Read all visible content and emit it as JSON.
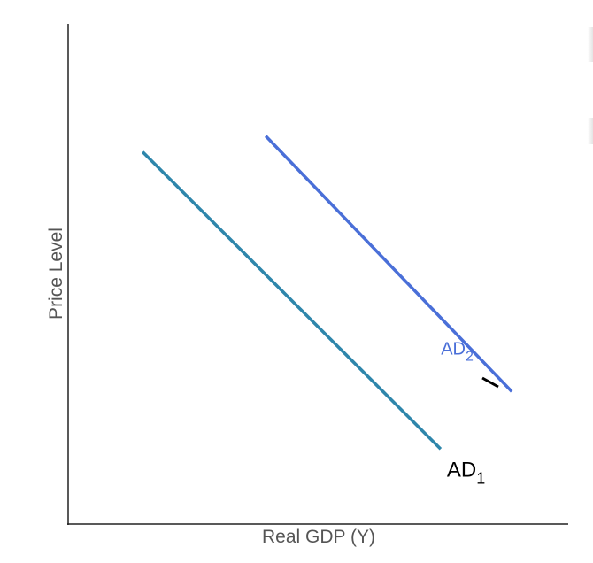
{
  "chart_data": {
    "type": "line",
    "title": "",
    "xlabel": "Real GDP (Y)",
    "ylabel": "Price Level",
    "xlim": [
      0,
      100
    ],
    "ylim": [
      0,
      100
    ],
    "grid": false,
    "legend": "none",
    "series": [
      {
        "name": "AD",
        "subscript": "1",
        "color": "#2e86ab",
        "label_color": "#000000",
        "points": [
          [
            14.9,
            74.4
          ],
          [
            74.5,
            15.0
          ]
        ]
      },
      {
        "name": "AD",
        "subscript": "2",
        "color": "#4a6fd8",
        "label_color": "#4a6fd8",
        "points": [
          [
            39.5,
            77.6
          ],
          [
            88.7,
            26.5
          ]
        ]
      }
    ]
  },
  "colors": {
    "axis": "#222222",
    "axis_title": "#555555"
  }
}
